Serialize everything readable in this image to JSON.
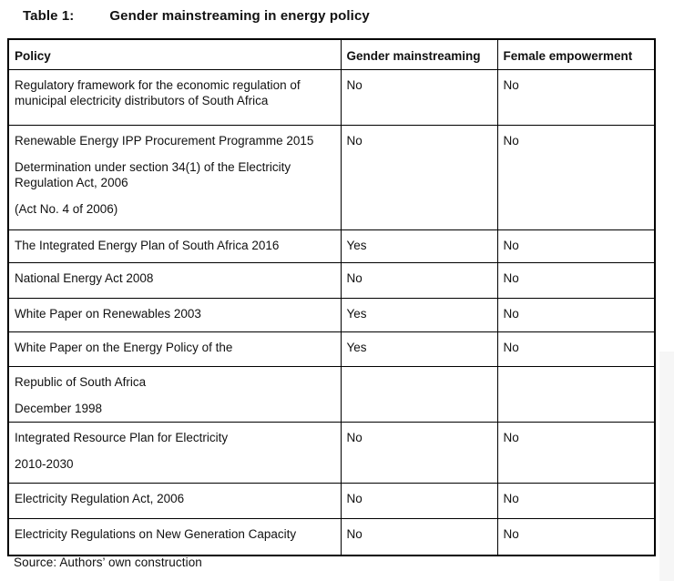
{
  "title": {
    "label": "Table 1:",
    "text": "Gender mainstreaming in energy policy"
  },
  "table": {
    "columns": [
      "Policy",
      "Gender mainstreaming",
      "Female empowerment"
    ],
    "rows": [
      {
        "policy": [
          "Regulatory framework for the economic regulation of municipal electricity distributors of South Africa"
        ],
        "gender_mainstreaming": "No",
        "female_empowerment": "No"
      },
      {
        "policy": [
          "Renewable Energy IPP Procurement Programme 2015",
          "Determination under section 34(1) of the Electricity Regulation Act, 2006",
          "(Act No. 4 of 2006)"
        ],
        "gender_mainstreaming": "No",
        "female_empowerment": "No"
      },
      {
        "policy": [
          "The Integrated Energy Plan of South Africa 2016"
        ],
        "gender_mainstreaming": "Yes",
        "female_empowerment": "No"
      },
      {
        "policy": [
          "National Energy Act 2008"
        ],
        "gender_mainstreaming": "No",
        "female_empowerment": "No"
      },
      {
        "policy": [
          "White Paper on Renewables 2003"
        ],
        "gender_mainstreaming": "Yes",
        "female_empowerment": "No"
      },
      {
        "policy": [
          "White Paper on the Energy Policy of the"
        ],
        "gender_mainstreaming": "Yes",
        "female_empowerment": "No"
      },
      {
        "policy": [
          "Republic of South Africa",
          "December 1998"
        ],
        "gender_mainstreaming": "",
        "female_empowerment": ""
      },
      {
        "policy": [
          "Integrated Resource Plan for Electricity",
          "2010-2030"
        ],
        "gender_mainstreaming": "No",
        "female_empowerment": "No"
      },
      {
        "policy": [
          "Electricity Regulation Act, 2006"
        ],
        "gender_mainstreaming": "No",
        "female_empowerment": "No"
      },
      {
        "policy": [
          "Electricity Regulations on New Generation Capacity"
        ],
        "gender_mainstreaming": "No",
        "female_empowerment": "No"
      }
    ]
  },
  "source": "Source: Authors’ own construction",
  "colors": {
    "border": "#000000",
    "text": "#111111",
    "background": "#ffffff",
    "artifact": "#f6f6f6"
  }
}
